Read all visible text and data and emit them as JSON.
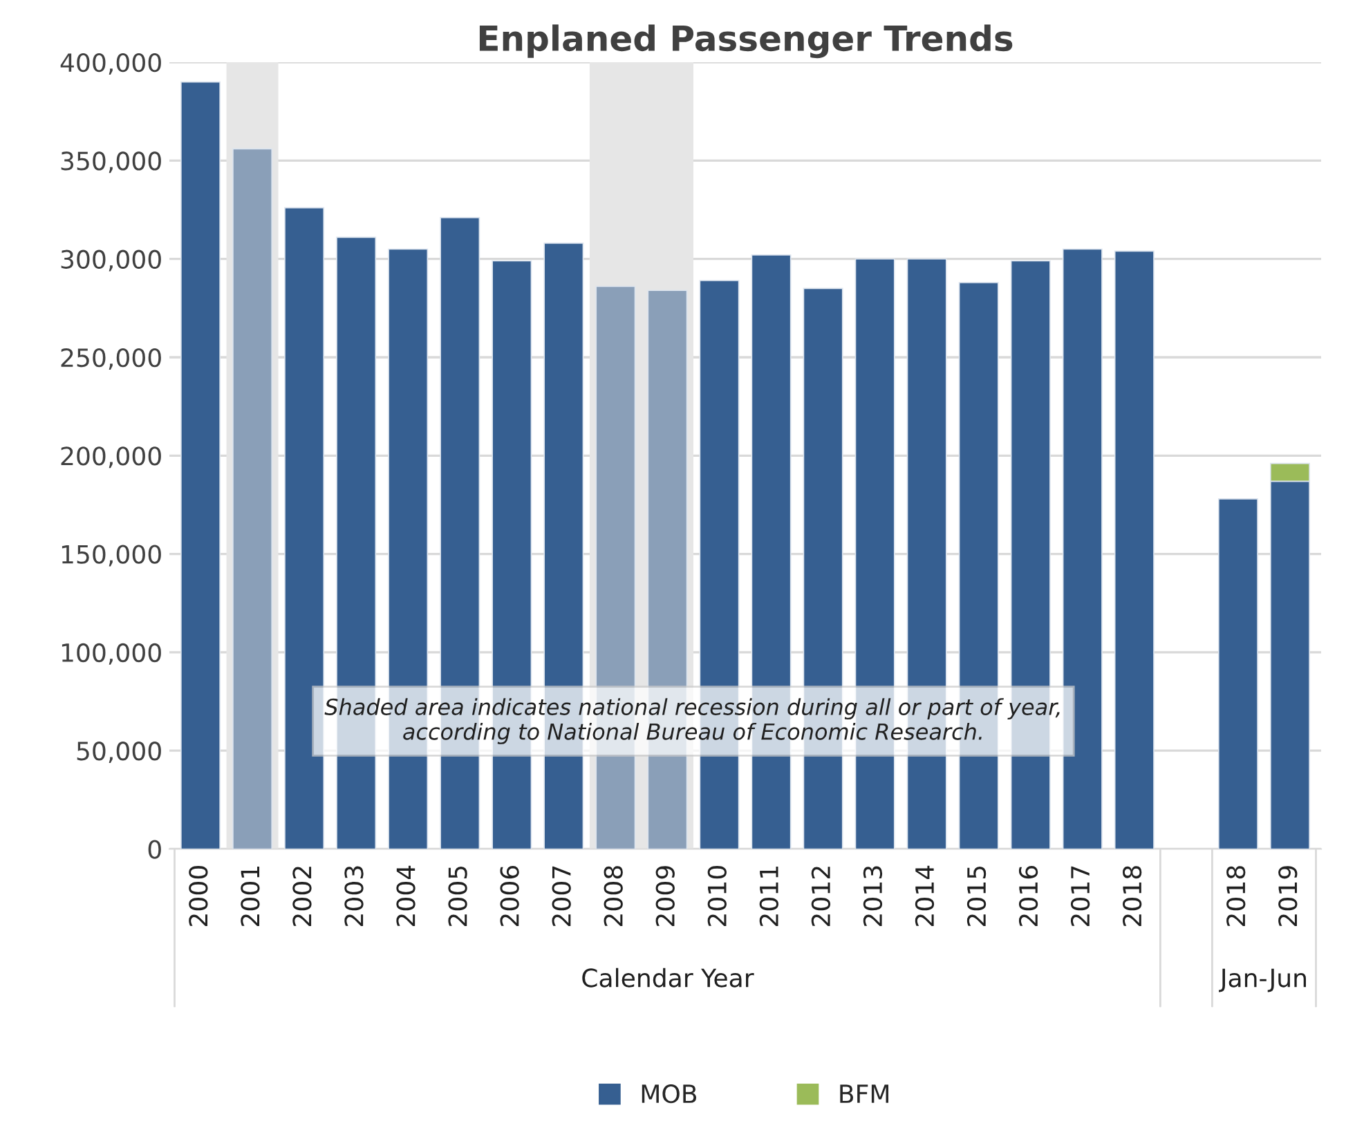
{
  "chart_data": {
    "type": "bar",
    "title": "Enplaned Passenger Trends",
    "stacked": true,
    "categories": [
      "2000",
      "2001",
      "2002",
      "2003",
      "2004",
      "2005",
      "2006",
      "2007",
      "2008",
      "2009",
      "2010",
      "2011",
      "2012",
      "2013",
      "2014",
      "2015",
      "2016",
      "2017",
      "2018",
      null,
      "2018",
      "2019"
    ],
    "series": [
      {
        "name": "MOB",
        "color": "#365f91",
        "colors": [
          "#365f91",
          "#8a9fb8",
          "#365f91",
          "#365f91",
          "#365f91",
          "#365f91",
          "#365f91",
          "#365f91",
          "#8a9fb8",
          "#8a9fb8",
          "#365f91",
          "#365f91",
          "#365f91",
          "#365f91",
          "#365f91",
          "#365f91",
          "#365f91",
          "#365f91",
          "#365f91",
          "#365f91",
          "#365f91",
          "#365f91"
        ],
        "values": [
          390000,
          356000,
          326000,
          311000,
          305000,
          321000,
          299000,
          308000,
          286000,
          284000,
          289000,
          302000,
          285000,
          300000,
          300000,
          288000,
          299000,
          305000,
          304000,
          null,
          178000,
          187000
        ]
      },
      {
        "name": "BFM",
        "color": "#9bbb59",
        "values": [
          null,
          null,
          null,
          null,
          null,
          null,
          null,
          null,
          null,
          null,
          null,
          null,
          null,
          null,
          null,
          null,
          null,
          null,
          null,
          null,
          null,
          9000
        ]
      }
    ],
    "ylim": [
      0,
      400000
    ],
    "yticks": [
      0,
      {
        "value": 50000,
        "label": "50,000"
      },
      {
        "value": 100000,
        "label": "100,000"
      },
      {
        "value": 150000,
        "label": "150,000"
      },
      {
        "value": 200000,
        "label": "200,000"
      },
      {
        "value": 250000,
        "label": "250,000"
      },
      {
        "value": 300000,
        "label": "300,000"
      },
      {
        "value": 350000,
        "label": "350,000"
      },
      {
        "value": 400000,
        "label": "400,000"
      }
    ],
    "bands": [
      {
        "axis": "x",
        "from": "2001",
        "to": "2001",
        "color": "#e6e6e6"
      },
      {
        "axis": "x",
        "from": "2008",
        "to": "2009",
        "color": "#e6e6e6"
      }
    ],
    "annotations": [
      "Shaded area indicates national recession during all or part of year,\naccording to National Bureau of Economic Research.",
      "Calendar Year",
      "Jan-Jun"
    ],
    "grid": "y",
    "legend": "bottom"
  }
}
